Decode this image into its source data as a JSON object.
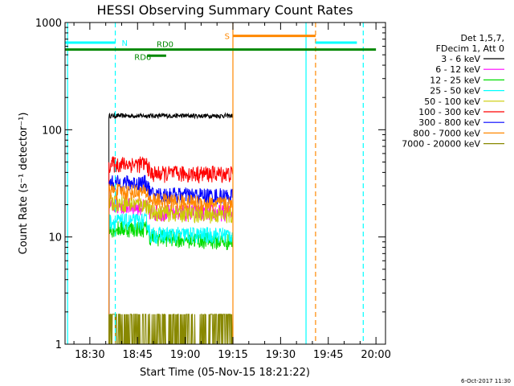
{
  "chart_data": {
    "type": "line",
    "title": "HESSI Observing Summary Count Rates",
    "xlabel": "Start Time (05-Nov-15 18:21:22)",
    "ylabel": "Count Rate (s⁻¹ detector⁻¹)",
    "yscale": "log",
    "ylim": [
      1,
      1000
    ],
    "xlim_minutes": [
      18.37,
      20.05
    ],
    "xticks": [
      "18:30",
      "18:45",
      "19:00",
      "19:15",
      "19:30",
      "19:45",
      "20:00"
    ],
    "yticks": [
      "1",
      "10",
      "100",
      "1000"
    ],
    "footer": "6-Oct-2017 11:30",
    "legend": {
      "position": "right",
      "header": [
        "Det 1,5,7,",
        "FDecim 1, Att 0"
      ],
      "entries": [
        {
          "label": "3 - 6 keV",
          "color": "#000000"
        },
        {
          "label": "6 - 12 keV",
          "color": "#ff00ff"
        },
        {
          "label": "12 - 25 keV",
          "color": "#00dd00"
        },
        {
          "label": "25 - 50 keV",
          "color": "#00ffff"
        },
        {
          "label": "50 - 100 keV",
          "color": "#cccc00"
        },
        {
          "label": "100 - 300 keV",
          "color": "#ff0000"
        },
        {
          "label": "300 - 800 keV",
          "color": "#0000ff"
        },
        {
          "label": "800 - 7000 keV",
          "color": "#ff8800"
        },
        {
          "label": "7000 - 20000 keV",
          "color": "#888800"
        }
      ]
    },
    "series": [
      {
        "name": "3 - 6 keV",
        "color": "#000000",
        "x": [
          "18:36",
          "18:55",
          "19:15"
        ],
        "y": [
          135,
          135,
          135
        ]
      },
      {
        "name": "6 - 12 keV",
        "color": "#ff00ff",
        "x": [
          "18:36",
          "18:48",
          "18:49",
          "19:15"
        ],
        "y": [
          20,
          19,
          17,
          17
        ]
      },
      {
        "name": "12 - 25 keV",
        "color": "#00dd00",
        "x": [
          "18:36",
          "18:48",
          "18:49",
          "19:15"
        ],
        "y": [
          12,
          12,
          10,
          9
        ]
      },
      {
        "name": "25 - 50 keV",
        "color": "#00ffff",
        "x": [
          "18:36",
          "18:48",
          "18:49",
          "19:15"
        ],
        "y": [
          14,
          14,
          10.5,
          10.5
        ]
      },
      {
        "name": "50 - 100 keV",
        "color": "#cccc00",
        "x": [
          "18:36",
          "18:48",
          "18:49",
          "19:15"
        ],
        "y": [
          21,
          20,
          17,
          16
        ]
      },
      {
        "name": "100 - 300 keV",
        "color": "#ff0000",
        "x": [
          "18:36",
          "18:48",
          "18:49",
          "19:15"
        ],
        "y": [
          48,
          48,
          39,
          39
        ]
      },
      {
        "name": "300 - 800 keV",
        "color": "#0000ff",
        "x": [
          "18:36",
          "18:48",
          "18:49",
          "19:15"
        ],
        "y": [
          32,
          32,
          25,
          24
        ]
      },
      {
        "name": "800 - 7000 keV",
        "color": "#ff8800",
        "x": [
          "18:36",
          "18:48",
          "18:49",
          "19:15"
        ],
        "y": [
          27,
          26,
          22,
          20
        ]
      },
      {
        "name": "7000 - 20000 keV",
        "color": "#888800",
        "x": [
          "18:36",
          "19:15"
        ],
        "y": [
          1.9,
          1.9
        ]
      }
    ],
    "annotations": {
      "labels": [
        {
          "text": "N",
          "color": "#00ffff"
        },
        {
          "text": "RD0",
          "color": "#008800"
        },
        {
          "text": "RD6",
          "color": "#008800"
        },
        {
          "text": "S",
          "color": "#ff8800"
        }
      ],
      "segments": [
        {
          "color": "#00ffff",
          "y": 650,
          "x": [
            "18:21",
            "18:38"
          ]
        },
        {
          "color": "#00ffff",
          "y": 650,
          "x": [
            "19:41",
            "19:54"
          ]
        },
        {
          "color": "#008800",
          "y": 560,
          "x": [
            "18:21",
            "20:00"
          ]
        },
        {
          "color": "#008800",
          "y": 490,
          "x": [
            "18:48",
            "18:54"
          ]
        },
        {
          "color": "#ff8800",
          "y": 750,
          "x": [
            "19:15",
            "19:41"
          ]
        }
      ],
      "vlines": [
        {
          "color": "#00ffff",
          "x": "18:23",
          "dashed": false
        },
        {
          "color": "#00ffff",
          "x": "18:38",
          "dashed": true
        },
        {
          "color": "#ff8800",
          "x": "19:15",
          "dashed": false
        },
        {
          "color": "#00ffff",
          "x": "19:38",
          "dashed": false
        },
        {
          "color": "#ff8800",
          "x": "19:41",
          "dashed": true
        },
        {
          "color": "#00ffff",
          "x": "19:56",
          "dashed": true
        }
      ]
    }
  }
}
